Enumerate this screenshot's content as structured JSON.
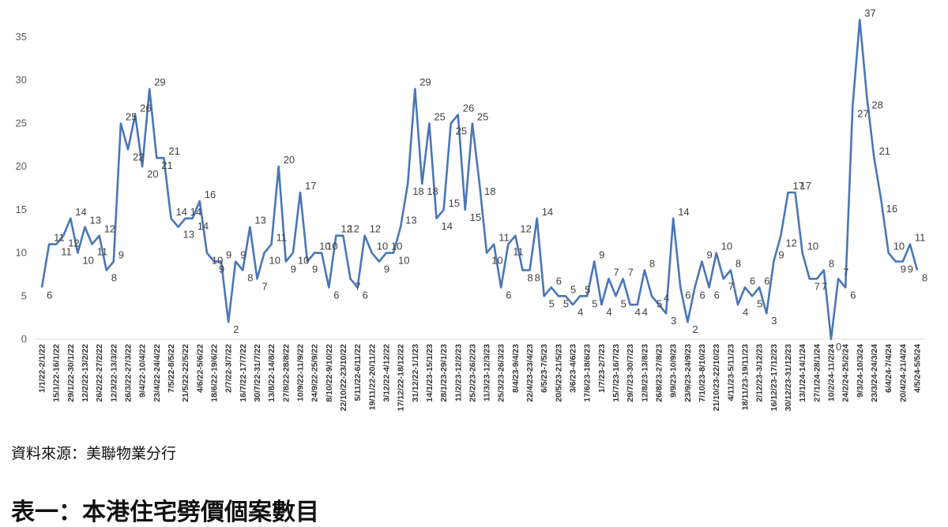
{
  "chart_data": {
    "type": "line",
    "title": "",
    "xlabel": "",
    "ylabel": "",
    "ylim": [
      0,
      35
    ],
    "yticks": [
      0,
      5,
      10,
      15,
      20,
      25,
      30,
      35
    ],
    "grid": false,
    "legend": "none",
    "line_color": "#4a76b6",
    "x_tick_labels": [
      "1/1/22-2/1/22",
      "15/1/22-16/1/22",
      "29/1/22-30/1/22",
      "12/2/22-13/2/22",
      "26/2/22-27/2/22",
      "12/3/22-13/3/22",
      "26/3/22-27/3/22",
      "9/4/22-10/4/22",
      "23/4/22-24/4/22",
      "7/5/22-8/5/22",
      "21/5/22-22/5/22",
      "4/6/22-5/6/22",
      "18/6/22-19/6/22",
      "2/7/22-3/7/22",
      "16/7/22-17/7/22",
      "30/7/22-31/7/22",
      "13/8/22-14/8/22",
      "27/8/22-28/8/22",
      "10/9/22-11/9/22",
      "24/9/22-25/9/22",
      "8/10/22-9/10/22",
      "22/10/22-23/10/22",
      "5/11/22-6/11/22",
      "19/11/22-20/11/22",
      "3/12/22-4/12/22",
      "17/12/22-18/12/22",
      "31/12/22-1/1/23",
      "14/1/23-15/1/23",
      "28/1/23-29/1/23",
      "11/2/23-12/2/23",
      "25/2/23-26/2/23",
      "11/3/23-12/3/23",
      "25/3/23-26/3/23",
      "8/4/23-9/4/23",
      "22/4/23-23/4/23",
      "6/5/23-7/5/23",
      "20/5/23-21/5/23",
      "3/6/23-4/6/23",
      "17/6/23-18/6/23",
      "1/7/23-2/7/23",
      "15/7/23-16/7/23",
      "29/7/23-30/7/23",
      "12/8/23-13/8/23",
      "26/8/23-27/8/23",
      "9/9/23-10/9/23",
      "23/9/23-24/9/23",
      "7/10/23-8/10/23",
      "21/10/23-22/10/23",
      "4/11/23-5/11/23",
      "18/11/23-19/11/23",
      "2/12/23-3/12/23",
      "16/12/23-17/12/23",
      "30/12/23-31/12/23",
      "13/1/24-14/1/24",
      "27/1/24-28/1/24",
      "10/2/24-11/2/24",
      "24/2/24-25/2/24",
      "9/3/24-10/3/24",
      "23/3/24-24/3/24",
      "6/4/24-7/4/24",
      "20/4/24-21/4/24",
      "4/5/24-5/5/24"
    ],
    "values": [
      6,
      11,
      11,
      12,
      14,
      10,
      13,
      11,
      12,
      8,
      9,
      25,
      22,
      26,
      20,
      29,
      21,
      21,
      14,
      13,
      14,
      14,
      16,
      10,
      9,
      9,
      2,
      9,
      8,
      13,
      7,
      10,
      11,
      20,
      9,
      10,
      17,
      9,
      10,
      10,
      6,
      12,
      12,
      7,
      6,
      12,
      10,
      9,
      10,
      10,
      13,
      18,
      29,
      18,
      25,
      14,
      15,
      25,
      26,
      15,
      25,
      18,
      10,
      11,
      6,
      11,
      12,
      8,
      8,
      14,
      5,
      6,
      5,
      5,
      4,
      5,
      5,
      9,
      4,
      7,
      5,
      7,
      4,
      4,
      8,
      5,
      4,
      3,
      14,
      6,
      2,
      6,
      9,
      6,
      10,
      7,
      8,
      4,
      6,
      5,
      6,
      3,
      9,
      12,
      17,
      17,
      10,
      7,
      7,
      8,
      0,
      7,
      6,
      27,
      37,
      28,
      21,
      16,
      10,
      9,
      9,
      11,
      8
    ],
    "data_labels": [
      "6",
      "11",
      "11",
      "12",
      "14",
      "10",
      "13",
      "11",
      "12",
      "8",
      "9",
      "25",
      "22",
      "26",
      "20",
      "29",
      "21",
      "21",
      "14",
      "13",
      "14",
      "14",
      "16",
      "10",
      "9",
      "9",
      "2",
      "9",
      "8",
      "13",
      "7",
      "10",
      "11",
      "20",
      "9",
      "10",
      "17",
      "9",
      "10",
      "10",
      "6",
      "12",
      "12",
      "7",
      "6",
      "12",
      "10",
      "9",
      "10",
      "10",
      "13",
      "18",
      "29",
      "18",
      "25",
      "14",
      "15",
      "25",
      "26",
      "15",
      "25",
      "18",
      "10",
      "11",
      "6",
      "11",
      "12",
      "8",
      "8",
      "14",
      "5",
      "6",
      "5",
      "5",
      "4",
      "5",
      "5",
      "9",
      "4",
      "7",
      "5",
      "7",
      "4",
      "4",
      "8",
      "5",
      "4",
      "3",
      "14",
      "6",
      "2",
      "6",
      "9",
      "6",
      "10",
      "7",
      "8",
      "4",
      "6",
      "5",
      "6",
      "3",
      "9",
      "12",
      "17",
      "17",
      "10",
      "7",
      "7",
      "8",
      "0",
      "7",
      "6",
      "27",
      "37",
      "28",
      "21",
      "16",
      "10",
      "9",
      "9",
      "11",
      "8"
    ]
  },
  "footer": {
    "source": "資料來源：美聯物業分行",
    "cut_heading": "表一：本港住宅劈價個案數目"
  }
}
